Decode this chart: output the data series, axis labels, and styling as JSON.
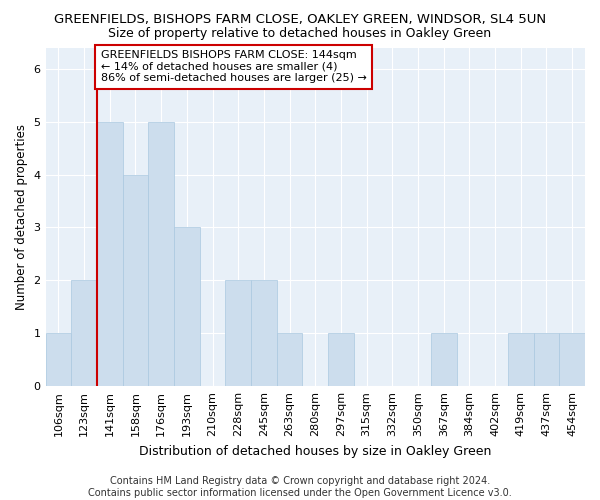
{
  "title1": "GREENFIELDS, BISHOPS FARM CLOSE, OAKLEY GREEN, WINDSOR, SL4 5UN",
  "title2": "Size of property relative to detached houses in Oakley Green",
  "xlabel": "Distribution of detached houses by size in Oakley Green",
  "ylabel": "Number of detached properties",
  "categories": [
    "106sqm",
    "123sqm",
    "141sqm",
    "158sqm",
    "176sqm",
    "193sqm",
    "210sqm",
    "228sqm",
    "245sqm",
    "263sqm",
    "280sqm",
    "297sqm",
    "315sqm",
    "332sqm",
    "350sqm",
    "367sqm",
    "384sqm",
    "402sqm",
    "419sqm",
    "437sqm",
    "454sqm"
  ],
  "values": [
    1,
    2,
    5,
    4,
    5,
    3,
    0,
    2,
    2,
    1,
    0,
    1,
    0,
    0,
    0,
    1,
    0,
    0,
    1,
    1,
    1
  ],
  "bar_color": "#ccdded",
  "bar_edge_color": "#aac8e0",
  "highlight_index": 2,
  "highlight_line_color": "#cc0000",
  "annotation_text": "GREENFIELDS BISHOPS FARM CLOSE: 144sqm\n← 14% of detached houses are smaller (4)\n86% of semi-detached houses are larger (25) →",
  "annotation_box_color": "#ffffff",
  "annotation_box_edge": "#cc0000",
  "ylim": [
    0,
    6.4
  ],
  "yticks": [
    0,
    1,
    2,
    3,
    4,
    5,
    6
  ],
  "footnote": "Contains HM Land Registry data © Crown copyright and database right 2024.\nContains public sector information licensed under the Open Government Licence v3.0.",
  "bg_color": "#ffffff",
  "plot_bg_color": "#e8f0f8",
  "grid_color": "#ffffff",
  "title1_fontsize": 9.5,
  "title2_fontsize": 9.0,
  "xlabel_fontsize": 9.0,
  "ylabel_fontsize": 8.5,
  "tick_fontsize": 8.0,
  "annot_fontsize": 8.0,
  "footnote_fontsize": 7.0
}
